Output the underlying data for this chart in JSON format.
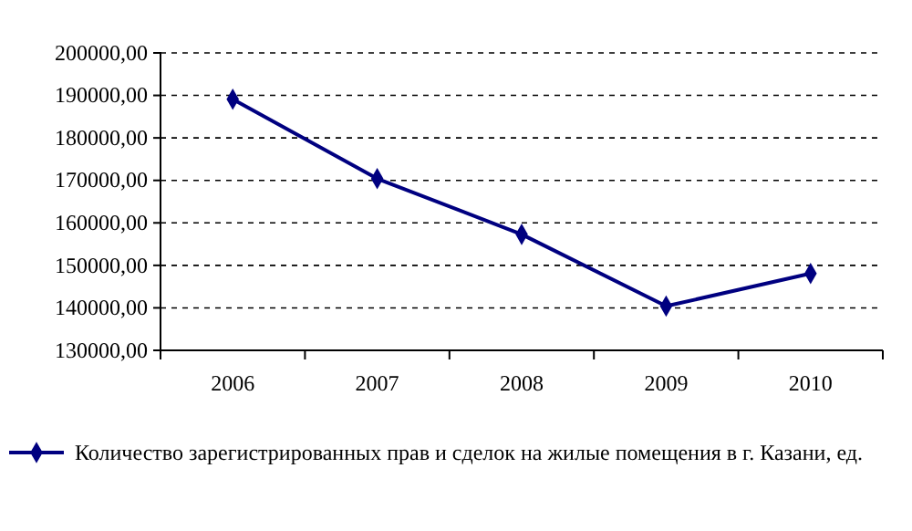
{
  "chart_data": {
    "type": "line",
    "categories": [
      "2006",
      "2007",
      "2008",
      "2009",
      "2010"
    ],
    "series": [
      {
        "name": "Количество зарегистрированных прав и сделок на жилые помещения в г. Казани, ед.",
        "color": "#000080",
        "values": [
          189100,
          170400,
          157300,
          140400,
          148100
        ]
      }
    ],
    "ylim": [
      130000,
      200000
    ],
    "yticks": [
      {
        "value": 130000,
        "label": "130000,00"
      },
      {
        "value": 140000,
        "label": "140000,00"
      },
      {
        "value": 150000,
        "label": "150000,00"
      },
      {
        "value": 160000,
        "label": "160000,00"
      },
      {
        "value": 170000,
        "label": "170000,00"
      },
      {
        "value": 180000,
        "label": "180000,00"
      },
      {
        "value": 190000,
        "label": "190000,00"
      },
      {
        "value": 200000,
        "label": "200000,00"
      }
    ],
    "grid": "y",
    "legend": "bottom",
    "marker": "diamond",
    "line_style": "solid"
  }
}
